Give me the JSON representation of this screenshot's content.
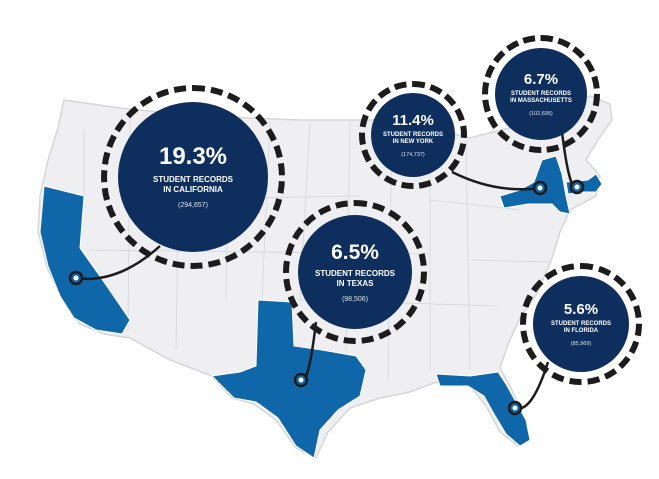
{
  "colors": {
    "map_fill": "#efeff1",
    "map_stroke": "#d4d6da",
    "highlight": "#0f66a8",
    "bubble": "#0e2f5e",
    "ring": "#1c1c1c",
    "connector": "#1c1c1c"
  },
  "callouts": [
    {
      "id": "california",
      "state": "California",
      "percent": "19.3%",
      "label_line1": "STUDENT RECORDS",
      "label_line2": "IN CALIFORNIA",
      "count": "(294,657)"
    },
    {
      "id": "texas",
      "state": "Texas",
      "percent": "6.5%",
      "label_line1": "STUDENT RECORDS",
      "label_line2": "IN TEXAS",
      "count": "(98,506)"
    },
    {
      "id": "new-york",
      "state": "New York",
      "percent": "11.4%",
      "label_line1": "STUDENT RECORDS",
      "label_line2": "IN NEW YORK",
      "count": "(174,737)"
    },
    {
      "id": "massachusetts",
      "state": "Massachusetts",
      "percent": "6.7%",
      "label_line1": "STUDENT RECORDS",
      "label_line2": "IN MASSACHUSETTS",
      "count": "(102,695)"
    },
    {
      "id": "florida",
      "state": "Florida",
      "percent": "5.6%",
      "label_line1": "STUDENT RECORDS",
      "label_line2": "IN FLORIDA",
      "count": "(85,969)"
    }
  ]
}
